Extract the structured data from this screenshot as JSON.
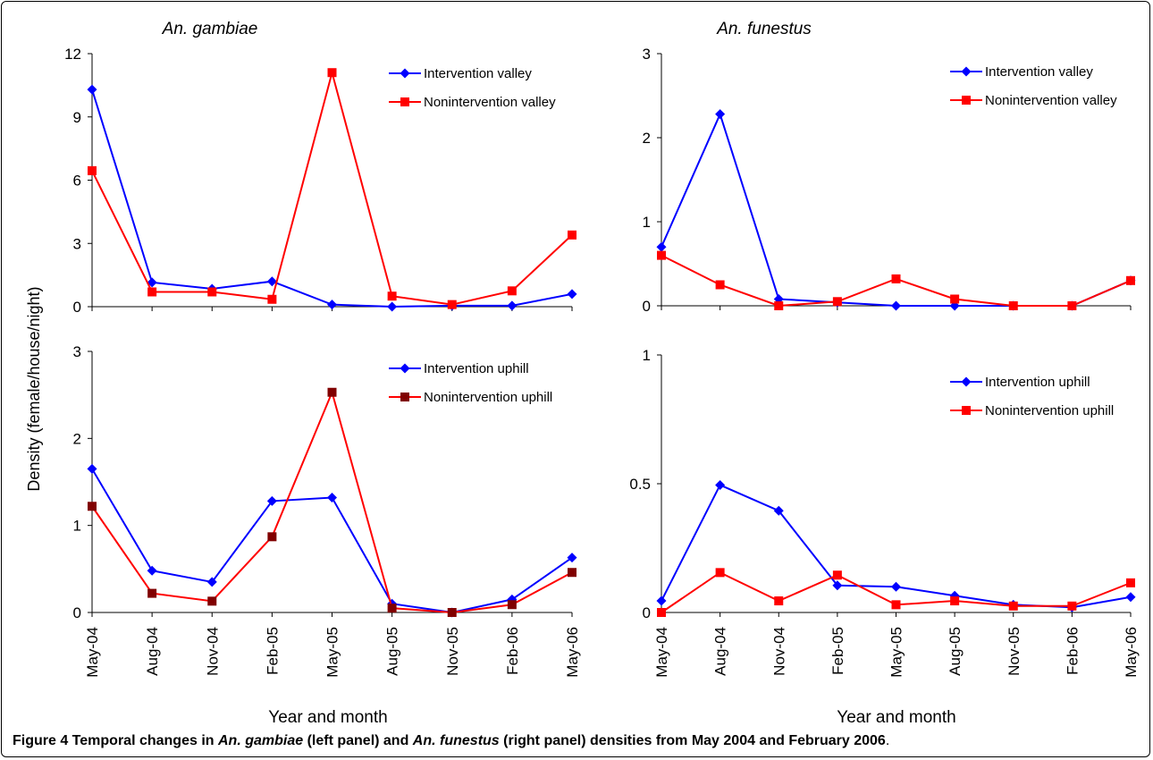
{
  "figure": {
    "ylabel_shared": "Density (female/house/night)",
    "xlabel_left": "Year and month",
    "xlabel_right": "Year and month",
    "caption": {
      "part1": "Figure 4 Temporal changes in ",
      "species1": "An. gambiae",
      "part2": " (left panel) and ",
      "species2": "An. funestus",
      "part3": " (right panel) densities from May 2004 and February 2006",
      "end": "."
    }
  },
  "chart_data": [
    {
      "type": "line",
      "title": "An. gambiae",
      "xlabel": "",
      "ylabel": "",
      "categories": [
        "May-04",
        "Aug-04",
        "Nov-04",
        "Feb-05",
        "May-05",
        "Aug-05",
        "Nov-05",
        "Feb-06",
        "May-06"
      ],
      "ylim": [
        0,
        12
      ],
      "yticks": [
        "0",
        "3",
        "6",
        "9",
        "12"
      ],
      "ytick_values": [
        0,
        3,
        6,
        9,
        12
      ],
      "show_xlabels": false,
      "legend_position": "top-right",
      "series": [
        {
          "name": "Intervention valley",
          "color": "#0000ff",
          "marker": "diamond",
          "values": [
            10.3,
            1.15,
            0.85,
            1.2,
            0.1,
            0.0,
            0.05,
            0.05,
            0.6
          ]
        },
        {
          "name": "Nonintervention valley",
          "color": "#ff0000",
          "marker": "square",
          "values": [
            6.45,
            0.7,
            0.7,
            0.35,
            11.1,
            0.5,
            0.1,
            0.75,
            3.4
          ]
        }
      ]
    },
    {
      "type": "line",
      "title": "An. funestus",
      "xlabel": "",
      "ylabel": "",
      "categories": [
        "May-04",
        "Aug-04",
        "Nov-04",
        "Feb-05",
        "May-05",
        "Aug-05",
        "Nov-05",
        "Feb-06",
        "May-06"
      ],
      "ylim": [
        0,
        3
      ],
      "yticks": [
        "0",
        "1",
        "2",
        "3"
      ],
      "ytick_values": [
        0,
        1,
        2,
        3
      ],
      "show_xlabels": false,
      "legend_position": "top-right",
      "series": [
        {
          "name": "Intervention valley",
          "color": "#0000ff",
          "marker": "diamond",
          "values": [
            0.7,
            2.28,
            0.08,
            0.04,
            0.0,
            0.0,
            0.0,
            0.0,
            0.3
          ]
        },
        {
          "name": "Nonintervention valley",
          "color": "#ff0000",
          "marker": "square",
          "values": [
            0.6,
            0.25,
            0.0,
            0.05,
            0.32,
            0.08,
            0.0,
            0.0,
            0.3
          ]
        }
      ]
    },
    {
      "type": "line",
      "title": "",
      "xlabel": "Year and month",
      "ylabel": "",
      "categories": [
        "May-04",
        "Aug-04",
        "Nov-04",
        "Feb-05",
        "May-05",
        "Aug-05",
        "Nov-05",
        "Feb-06",
        "May-06"
      ],
      "ylim": [
        0,
        3
      ],
      "yticks": [
        "0",
        "1",
        "2",
        "3"
      ],
      "ytick_values": [
        0,
        1,
        2,
        3
      ],
      "show_xlabels": true,
      "legend_position": "top-right",
      "series": [
        {
          "name": "Intervention uphill",
          "color": "#0000ff",
          "marker": "diamond",
          "values": [
            1.65,
            0.48,
            0.35,
            1.28,
            1.32,
            0.1,
            0.0,
            0.15,
            0.63
          ]
        },
        {
          "name": "Nonintervention uphill",
          "color": "#ff0000",
          "markerColor": "#800000",
          "marker": "square",
          "values": [
            1.22,
            0.22,
            0.13,
            0.87,
            2.53,
            0.05,
            0.0,
            0.09,
            0.46
          ]
        }
      ]
    },
    {
      "type": "line",
      "title": "",
      "xlabel": "Year and month",
      "ylabel": "",
      "categories": [
        "May-04",
        "Aug-04",
        "Nov-04",
        "Feb-05",
        "May-05",
        "Aug-05",
        "Nov-05",
        "Feb-06",
        "May-06"
      ],
      "ylim": [
        0,
        1
      ],
      "yticks": [
        "0",
        "0.5",
        "1"
      ],
      "ytick_values": [
        0,
        0.5,
        1
      ],
      "show_xlabels": true,
      "legend_position": "top-right",
      "series": [
        {
          "name": "Intervention uphill",
          "color": "#0000ff",
          "marker": "diamond",
          "values": [
            0.045,
            0.495,
            0.395,
            0.105,
            0.1,
            0.065,
            0.03,
            0.02,
            0.06
          ]
        },
        {
          "name": "Nonintervention uphill",
          "color": "#ff0000",
          "marker": "square",
          "values": [
            0.0,
            0.155,
            0.045,
            0.145,
            0.03,
            0.045,
            0.025,
            0.025,
            0.115
          ]
        }
      ]
    }
  ]
}
